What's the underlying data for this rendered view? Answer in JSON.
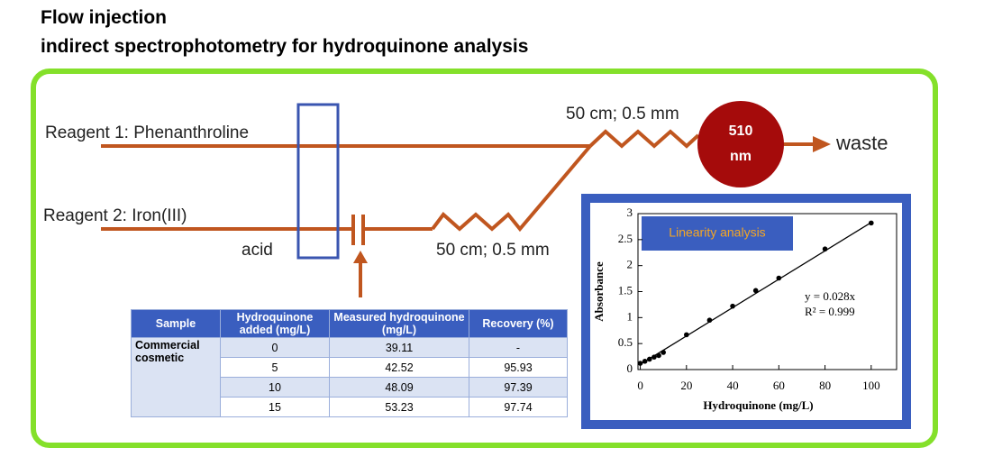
{
  "header": {
    "title_line1": "Flow injection",
    "title_line2": "indirect spectrophotometry for hydroquinone analysis"
  },
  "diagram": {
    "reagent1": "Reagent 1: Phenanthroline",
    "reagent2": "Reagent 2: Iron(III)",
    "acid": "acid",
    "coil1": "50 cm; 0.5 mm",
    "coil2": "50 cm; 0.5 mm",
    "detector_line1": "510",
    "detector_line2": "nm",
    "waste": "waste"
  },
  "table": {
    "headers": [
      "Sample",
      "Hydroquinone added (mg/L)",
      "Measured hydroquinone (mg/L)",
      "Recovery (%)"
    ],
    "sample": "Commercial cosmetic",
    "rows": [
      [
        "0",
        "39.11",
        "-"
      ],
      [
        "5",
        "42.52",
        "95.93"
      ],
      [
        "10",
        "48.09",
        "97.39"
      ],
      [
        "15",
        "53.23",
        "97.74"
      ]
    ]
  },
  "chart_data": {
    "type": "scatter",
    "title": "Linearity analysis",
    "x_label": "Hydroquinone (mg/L)",
    "y_label": "Absorbance",
    "annotations": [
      "y = 0.028x",
      "R² = 0.999"
    ],
    "x": [
      0,
      2,
      4,
      6,
      8,
      10,
      20,
      30,
      40,
      50,
      60,
      80,
      100
    ],
    "values": [
      0.12,
      0.16,
      0.2,
      0.24,
      0.27,
      0.33,
      0.67,
      0.95,
      1.22,
      1.52,
      1.76,
      2.32,
      2.82
    ],
    "color": "#000000",
    "fit": {
      "x": [
        0,
        100
      ],
      "values": [
        0.1,
        2.83
      ]
    },
    "xlim": [
      -1,
      111
    ],
    "ylim": [
      0,
      3
    ],
    "xticks": [
      0,
      20,
      40,
      60,
      80,
      100
    ],
    "yticks": [
      0,
      0.5,
      1,
      1.5,
      2,
      2.5,
      3
    ]
  }
}
